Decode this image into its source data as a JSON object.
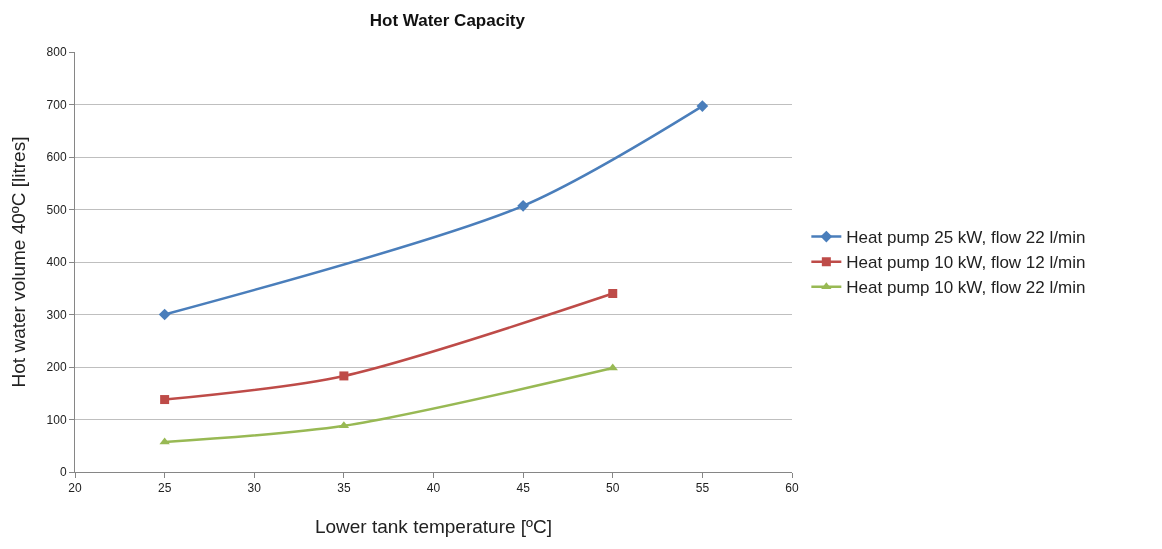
{
  "chart_data": {
    "type": "line",
    "title": "Hot Water Capacity",
    "xlabel": "Lower tank temperature [ºC]",
    "ylabel": "Hot water volume 40ºC [litres]",
    "xlim": [
      20,
      60
    ],
    "xticks": [
      20,
      25,
      30,
      35,
      40,
      45,
      50,
      55,
      60
    ],
    "ylim": [
      0,
      800
    ],
    "yticks": [
      0,
      100,
      200,
      300,
      400,
      500,
      600,
      700,
      800
    ],
    "grid": "y",
    "legend": "right",
    "line_style": "solid",
    "series": [
      {
        "name": "Heat pump 25 kW, flow 22 l/min",
        "color": "#4a7ebb",
        "marker": "diamond",
        "x": [
          25,
          45,
          55
        ],
        "values": [
          300,
          507,
          697
        ]
      },
      {
        "name": "Heat pump 10 kW, flow 12 l/min",
        "color": "#be4b48",
        "marker": "square",
        "x": [
          25,
          35,
          50
        ],
        "values": [
          138,
          183,
          340
        ]
      },
      {
        "name": "Heat pump 10 kW, flow 22 l/min",
        "color": "#98b954",
        "marker": "triangle",
        "x": [
          25,
          35,
          50
        ],
        "values": [
          57,
          88,
          198
        ]
      }
    ]
  }
}
